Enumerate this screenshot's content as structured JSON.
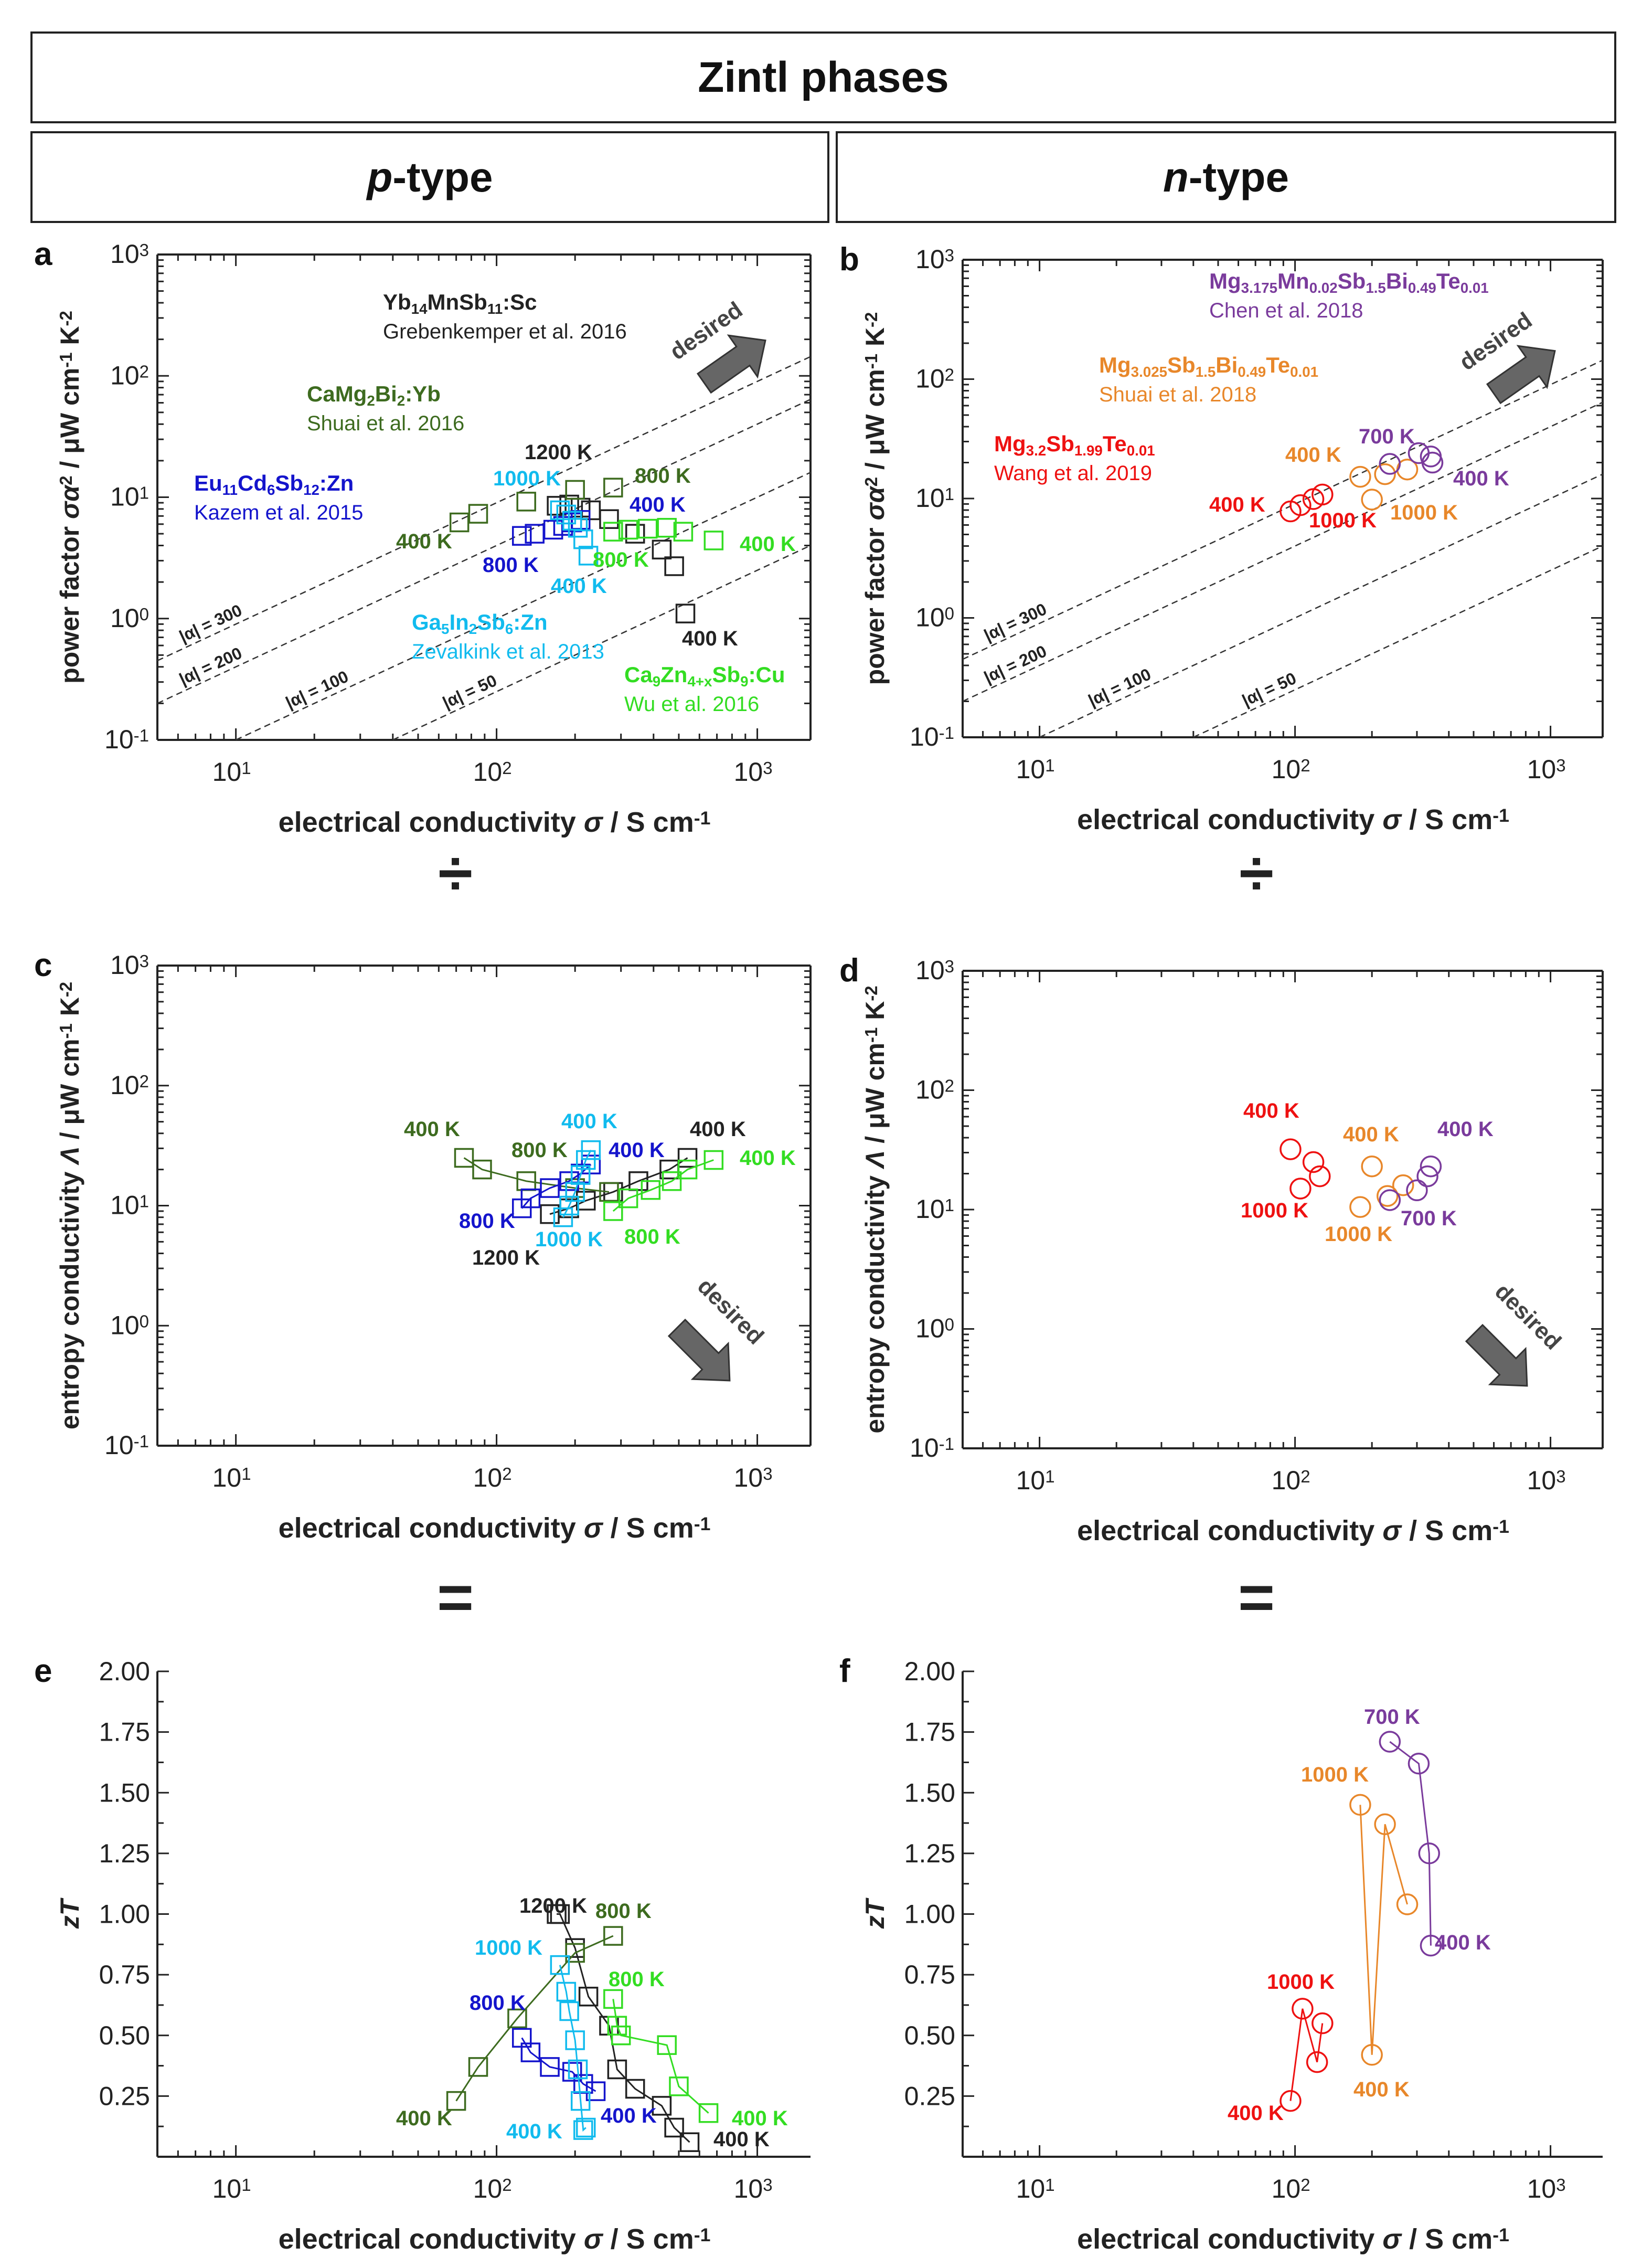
{
  "header": {
    "title": "Zintl phases",
    "left_title": "p-type",
    "left_title_prefix": "p",
    "left_title_suffix": "-type",
    "right_title": "n-type",
    "right_title_prefix": "n",
    "right_title_suffix": "-type"
  },
  "operators": {
    "divide": "÷",
    "equals": "="
  },
  "colors": {
    "black": "#222222",
    "darkgreen": "#3d6b1f",
    "green": "#33dd22",
    "blue": "#1414cc",
    "cyan": "#11bbee",
    "purple": "#7a3b9c",
    "orange": "#e8872a",
    "red": "#ee1111",
    "arrow": "#666666"
  },
  "chart_data": [
    {
      "panel": "a",
      "type": "scatter",
      "scale": "log-log",
      "xlabel": "electrical conductivity σ / S cm⁻¹",
      "ylabel": "power factor σα² / μW cm⁻¹ K⁻²",
      "xlim": [
        5,
        1600
      ],
      "ylim": [
        0.1,
        1000
      ],
      "xticks": [
        "10^1",
        "10^2",
        "10^3"
      ],
      "yticks": [
        "10^-1",
        "10^0",
        "10^1",
        "10^2",
        "10^3"
      ],
      "iso_lines": [
        {
          "alpha": 300,
          "label": "|α| = 300"
        },
        {
          "alpha": 200,
          "label": "|α| = 200"
        },
        {
          "alpha": 100,
          "label": "|α| = 100"
        },
        {
          "alpha": 50,
          "label": "|α| = 50"
        }
      ],
      "desired_label": "desired",
      "series": [
        {
          "name": "Yb14MnSb11:Sc",
          "color": "black",
          "marker": "square",
          "x": [
            170,
            190,
            210,
            230,
            270,
            340,
            430,
            480,
            530
          ],
          "y": [
            8.5,
            8.7,
            8.2,
            7.8,
            6.6,
            5.0,
            3.7,
            2.7,
            1.1
          ]
        },
        {
          "name": "CaMg2Bi2:Yb",
          "color": "darkgreen",
          "marker": "square",
          "x": [
            72,
            85,
            130,
            200,
            280
          ],
          "y": [
            6.2,
            7.3,
            9.2,
            11.5,
            12.0
          ]
        },
        {
          "name": "Eu11Cd6Sb12:Zn",
          "color": "blue",
          "marker": "square",
          "x": [
            125,
            140,
            165,
            180,
            195,
            210
          ],
          "y": [
            4.8,
            5.0,
            5.4,
            5.8,
            6.2,
            6.5
          ]
        },
        {
          "name": "Ga5In2Sb6:Zn",
          "color": "cyan",
          "marker": "square",
          "x": [
            175,
            185,
            195,
            205,
            215,
            225
          ],
          "y": [
            7.8,
            7.2,
            6.4,
            5.6,
            4.5,
            3.3
          ]
        },
        {
          "name": "Ca9Zn4+xSb9:Cu",
          "color": "green",
          "marker": "square",
          "x": [
            280,
            320,
            380,
            450,
            520,
            680
          ],
          "y": [
            5.2,
            5.4,
            5.5,
            5.6,
            5.2,
            4.4
          ]
        }
      ],
      "legend": [
        {
          "formula": "Yb14MnSb11:Sc",
          "ref": "Grebenkemper et al. 2016",
          "color": "black"
        },
        {
          "formula": "CaMg2Bi2:Yb",
          "ref": "Shuai et al. 2016",
          "color": "darkgreen"
        },
        {
          "formula": "Eu11Cd6Sb12:Zn",
          "ref": "Kazem et al. 2015",
          "color": "blue"
        },
        {
          "formula": "Ga5In2Sb6:Zn",
          "ref": "Zevalkink et al. 2013",
          "color": "cyan"
        },
        {
          "formula": "Ca9Zn4+xSb9:Cu",
          "ref": "Wu et al. 2016",
          "color": "green"
        }
      ],
      "annotations": [
        {
          "text": "1200 K",
          "color": "black"
        },
        {
          "text": "400 K",
          "color": "black"
        },
        {
          "text": "800 K",
          "color": "darkgreen"
        },
        {
          "text": "400 K",
          "color": "darkgreen"
        },
        {
          "text": "400 K",
          "color": "blue"
        },
        {
          "text": "800 K",
          "color": "blue"
        },
        {
          "text": "1000 K",
          "color": "cyan"
        },
        {
          "text": "400 K",
          "color": "cyan"
        },
        {
          "text": "800 K",
          "color": "green"
        },
        {
          "text": "400 K",
          "color": "green"
        }
      ]
    },
    {
      "panel": "b",
      "type": "scatter",
      "scale": "log-log",
      "xlabel": "electrical conductivity σ / S cm⁻¹",
      "ylabel": "power factor σα² / μW cm⁻¹ K⁻²",
      "xlim": [
        5,
        1600
      ],
      "ylim": [
        0.1,
        1000
      ],
      "xticks": [
        "10^1",
        "10^2",
        "10^3"
      ],
      "yticks": [
        "10^-1",
        "10^0",
        "10^1",
        "10^2",
        "10^3"
      ],
      "iso_lines": [
        {
          "alpha": 300,
          "label": "|α| = 300"
        },
        {
          "alpha": 200,
          "label": "|α| = 200"
        },
        {
          "alpha": 100,
          "label": "|α| = 100"
        },
        {
          "alpha": 50,
          "label": "|α| = 50"
        }
      ],
      "desired_label": "desired",
      "series": [
        {
          "name": "Mg3.2Sb1.99Te0.01",
          "color": "red",
          "marker": "circle",
          "x": [
            96,
            105,
            118,
            128
          ],
          "y": [
            7.8,
            8.8,
            9.9,
            10.8
          ]
        },
        {
          "name": "Mg3.025Sb1.5Bi0.49Te0.01",
          "color": "orange",
          "marker": "circle",
          "x": [
            180,
            200,
            225,
            275
          ],
          "y": [
            15.2,
            9.8,
            16.0,
            17.5
          ]
        },
        {
          "name": "Mg3.175Mn0.02Sb1.5Bi0.49Te0.01",
          "color": "purple",
          "marker": "circle",
          "x": [
            235,
            305,
            340,
            345
          ],
          "y": [
            19.5,
            24.0,
            22.5,
            20.0
          ]
        }
      ],
      "legend": [
        {
          "formula": "Mg3.175Mn0.02Sb1.5Bi0.49Te0.01",
          "ref": "Chen et al. 2018",
          "color": "purple"
        },
        {
          "formula": "Mg3.025Sb1.5Bi0.49Te0.01",
          "ref": "Shuai et al. 2018",
          "color": "orange"
        },
        {
          "formula": "Mg3.2Sb1.99Te0.01",
          "ref": "Wang et al. 2019",
          "color": "red"
        }
      ],
      "annotations": [
        {
          "text": "700 K",
          "color": "purple"
        },
        {
          "text": "400 K",
          "color": "purple"
        },
        {
          "text": "400 K",
          "color": "orange"
        },
        {
          "text": "1000 K",
          "color": "orange"
        },
        {
          "text": "400 K",
          "color": "red"
        },
        {
          "text": "1000 K",
          "color": "red"
        }
      ]
    },
    {
      "panel": "c",
      "type": "scatter",
      "scale": "log-log",
      "xlabel": "electrical conductivity σ / S cm⁻¹",
      "ylabel": "entropy conductivity Λ / μW cm⁻¹ K⁻²",
      "xlim": [
        5,
        1600
      ],
      "ylim": [
        0.1,
        1000
      ],
      "xticks": [
        "10^1",
        "10^2",
        "10^3"
      ],
      "yticks": [
        "10^-1",
        "10^0",
        "10^1",
        "10^2",
        "10^3"
      ],
      "desired_label": "desired",
      "series": [
        {
          "name": "Yb14MnSb11:Sc",
          "color": "black",
          "marker": "square",
          "x": [
            160,
            190,
            220,
            280,
            350,
            460,
            540
          ],
          "y": [
            8.5,
            9.5,
            11,
            13,
            16,
            20,
            25
          ]
        },
        {
          "name": "CaMg2Bi2:Yb",
          "color": "darkgreen",
          "marker": "square",
          "x": [
            75,
            88,
            130,
            200,
            270
          ],
          "y": [
            25,
            20,
            16,
            14,
            13
          ]
        },
        {
          "name": "Eu11Cd6Sb12:Zn",
          "color": "blue",
          "marker": "square",
          "x": [
            125,
            135,
            160,
            190,
            210,
            230
          ],
          "y": [
            9.5,
            11.5,
            14,
            16,
            18.5,
            22
          ]
        },
        {
          "name": "Ga5In2Sb6:Zn",
          "color": "cyan",
          "marker": "square",
          "x": [
            180,
            190,
            200,
            210,
            220,
            230
          ],
          "y": [
            8,
            10,
            13,
            18,
            24,
            29
          ]
        },
        {
          "name": "Ca9Zn4+xSb9:Cu",
          "color": "green",
          "marker": "square",
          "x": [
            280,
            320,
            390,
            470,
            540,
            680
          ],
          "y": [
            9,
            11.5,
            13.5,
            16,
            20,
            24
          ]
        }
      ],
      "annotations": [
        {
          "text": "400 K",
          "color": "darkgreen"
        },
        {
          "text": "800 K",
          "color": "darkgreen"
        },
        {
          "text": "400 K",
          "color": "cyan"
        },
        {
          "text": "1000 K",
          "color": "cyan"
        },
        {
          "text": "400 K",
          "color": "blue"
        },
        {
          "text": "800 K",
          "color": "blue"
        },
        {
          "text": "400 K",
          "color": "black"
        },
        {
          "text": "1200 K",
          "color": "black"
        },
        {
          "text": "400 K",
          "color": "green"
        },
        {
          "text": "800 K",
          "color": "green"
        }
      ]
    },
    {
      "panel": "d",
      "type": "scatter",
      "scale": "log-log",
      "xlabel": "electrical conductivity σ / S cm⁻¹",
      "ylabel": "entropy conductivity Λ / μW cm⁻¹ K⁻²",
      "xlim": [
        5,
        1600
      ],
      "ylim": [
        0.1,
        1000
      ],
      "xticks": [
        "10^1",
        "10^2",
        "10^3"
      ],
      "yticks": [
        "10^-1",
        "10^0",
        "10^1",
        "10^2",
        "10^3"
      ],
      "desired_label": "desired",
      "series": [
        {
          "name": "Mg3.2Sb1.99Te0.01",
          "color": "red",
          "marker": "circle",
          "x": [
            96,
            105,
            118,
            125
          ],
          "y": [
            32,
            15,
            25,
            19
          ]
        },
        {
          "name": "Mg3.025Sb1.5Bi0.49Te0.01",
          "color": "orange",
          "marker": "circle",
          "x": [
            180,
            200,
            230,
            265
          ],
          "y": [
            10.5,
            23,
            13,
            16
          ]
        },
        {
          "name": "Mg3.175Mn0.02Sb1.5Bi0.49Te0.01",
          "color": "purple",
          "marker": "circle",
          "x": [
            235,
            300,
            330,
            340
          ],
          "y": [
            12,
            14.5,
            19,
            23
          ]
        }
      ],
      "annotations": [
        {
          "text": "400 K",
          "color": "red"
        },
        {
          "text": "1000 K",
          "color": "red"
        },
        {
          "text": "400 K",
          "color": "orange"
        },
        {
          "text": "1000 K",
          "color": "orange"
        },
        {
          "text": "400 K",
          "color": "purple"
        },
        {
          "text": "700 K",
          "color": "purple"
        }
      ]
    },
    {
      "panel": "e",
      "type": "scatter",
      "scale": "log-x",
      "xlabel": "electrical conductivity σ / S cm⁻¹",
      "ylabel": "zT",
      "xlim": [
        5,
        1600
      ],
      "ylim": [
        0,
        2.0
      ],
      "xticks": [
        "10^1",
        "10^2",
        "10^3"
      ],
      "yticks": [
        "0.25",
        "0.50",
        "0.75",
        "1.00",
        "1.25",
        "1.50",
        "1.75",
        "2.00"
      ],
      "series": [
        {
          "name": "Yb14MnSb11:Sc",
          "color": "black",
          "marker": "square",
          "x": [
            170,
            175,
            200,
            225,
            270,
            290,
            340,
            430,
            480,
            550
          ],
          "y": [
            1.0,
            1.0,
            0.86,
            0.66,
            0.54,
            0.36,
            0.28,
            0.21,
            0.12,
            0.06
          ]
        },
        {
          "name": "CaMg2Bi2:Yb",
          "color": "darkgreen",
          "marker": "square",
          "x": [
            70,
            85,
            120,
            200,
            280
          ],
          "y": [
            0.23,
            0.37,
            0.57,
            0.84,
            0.91
          ]
        },
        {
          "name": "Eu11Cd6Sb12:Zn",
          "color": "blue",
          "marker": "square",
          "x": [
            125,
            135,
            160,
            195,
            215,
            240
          ],
          "y": [
            0.49,
            0.43,
            0.37,
            0.35,
            0.3,
            0.27
          ]
        },
        {
          "name": "Ga5In2Sb6:Zn",
          "color": "cyan",
          "marker": "square",
          "x": [
            175,
            185,
            190,
            200,
            205,
            210,
            215,
            220
          ],
          "y": [
            0.79,
            0.68,
            0.6,
            0.48,
            0.36,
            0.23,
            0.11,
            0.12
          ]
        },
        {
          "name": "Ca9Zn4+xSb9:Cu",
          "color": "green",
          "marker": "square",
          "x": [
            280,
            290,
            300,
            450,
            500,
            650
          ],
          "y": [
            0.65,
            0.54,
            0.5,
            0.46,
            0.29,
            0.18
          ]
        }
      ],
      "annotations": [
        {
          "text": "1200 K",
          "color": "black"
        },
        {
          "text": "400 K",
          "color": "black"
        },
        {
          "text": "800 K",
          "color": "darkgreen"
        },
        {
          "text": "400 K",
          "color": "darkgreen"
        },
        {
          "text": "1000 K",
          "color": "cyan"
        },
        {
          "text": "400 K",
          "color": "cyan"
        },
        {
          "text": "800 K",
          "color": "blue"
        },
        {
          "text": "400 K",
          "color": "blue"
        },
        {
          "text": "800 K",
          "color": "green"
        },
        {
          "text": "400 K",
          "color": "green"
        }
      ]
    },
    {
      "panel": "f",
      "type": "scatter",
      "scale": "log-x",
      "xlabel": "electrical conductivity σ / S cm⁻¹",
      "ylabel": "zT",
      "xlim": [
        5,
        1600
      ],
      "ylim": [
        0,
        2.0
      ],
      "xticks": [
        "10^1",
        "10^2",
        "10^3"
      ],
      "yticks": [
        "0.25",
        "0.50",
        "0.75",
        "1.00",
        "1.25",
        "1.50",
        "1.75",
        "2.00"
      ],
      "series": [
        {
          "name": "Mg3.2Sb1.99Te0.01",
          "color": "red",
          "marker": "circle",
          "x": [
            96,
            107,
            122,
            128
          ],
          "y": [
            0.23,
            0.61,
            0.39,
            0.55
          ]
        },
        {
          "name": "Mg3.025Sb1.5Bi0.49Te0.01",
          "color": "orange",
          "marker": "circle",
          "x": [
            180,
            200,
            225,
            275
          ],
          "y": [
            1.45,
            0.42,
            1.37,
            1.04
          ]
        },
        {
          "name": "Mg3.175Mn0.02Sb1.5Bi0.49Te0.01",
          "color": "purple",
          "marker": "circle",
          "x": [
            235,
            305,
            335,
            340
          ],
          "y": [
            1.71,
            1.62,
            1.25,
            0.87
          ]
        }
      ],
      "annotations": [
        {
          "text": "700 K",
          "color": "purple"
        },
        {
          "text": "400 K",
          "color": "purple"
        },
        {
          "text": "1000 K",
          "color": "orange"
        },
        {
          "text": "400 K",
          "color": "orange"
        },
        {
          "text": "1000 K",
          "color": "red"
        },
        {
          "text": "400 K",
          "color": "red"
        }
      ]
    }
  ]
}
